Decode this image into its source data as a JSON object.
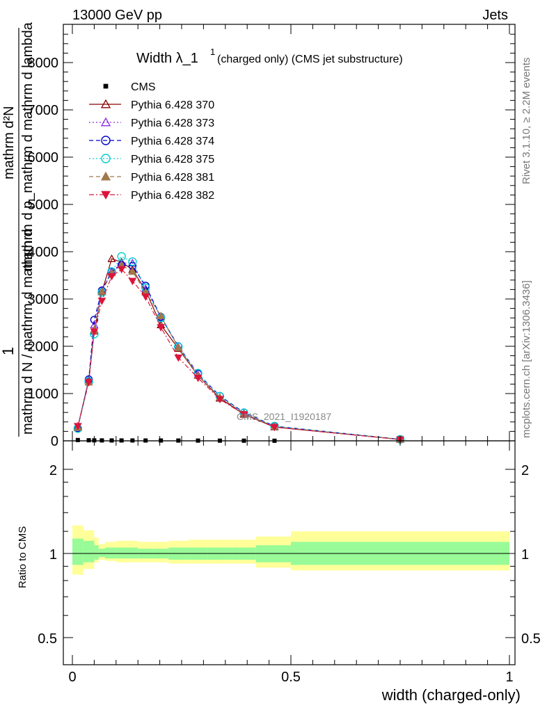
{
  "header": {
    "energy_label": "13000 GeV pp",
    "category_label": "Jets",
    "plot_title_main": "Width λ_1",
    "plot_title_sup": "1",
    "plot_title_rest": "(charged only) (CMS jet substructure)",
    "watermark": "CMS_2021_I1920187",
    "side_rivet": "Rivet 3.1.10, ≥ 2.2M events",
    "side_mcplots": "mcplots.cern.ch [arXiv:1306.3436]"
  },
  "ylabel_main": {
    "numerator": "mathrm d²N",
    "denominator": "mathrm d p_mathrm d mathrm d lambda",
    "prefix_num": "1",
    "prefix_den": "mathrm d N / mathrm d mathrm d"
  },
  "ratio_ylabel": "Ratio to CMS",
  "xlabel": "width (charged-only)",
  "chart_data": [
    {
      "type": "line",
      "panel": "main",
      "xlim": [
        -0.02,
        1.0
      ],
      "ylim": [
        0,
        8800
      ],
      "x_ticks": [
        "0",
        "0.5",
        "1"
      ],
      "y_ticks": [
        "0",
        "1000",
        "2000",
        "3000",
        "4000",
        "5000",
        "6000",
        "7000",
        "8000"
      ],
      "legend_placement": "top-left",
      "x": [
        0.0125,
        0.0375,
        0.05,
        0.0675,
        0.09,
        0.1125,
        0.1375,
        0.1675,
        0.2025,
        0.2425,
        0.2875,
        0.3375,
        0.3925,
        0.4625,
        0.75
      ],
      "series": [
        {
          "name": "CMS",
          "color": "#000000",
          "marker": "square",
          "values": [
            17,
            12,
            10,
            9,
            8,
            8,
            8,
            7,
            7,
            6,
            5,
            4,
            3,
            2,
            1
          ]
        },
        {
          "name": "Pythia 6.428 370",
          "color": "#8b0000",
          "marker": "triangle-up-open",
          "dash": "solid",
          "values": [
            300,
            1280,
            2320,
            3150,
            3850,
            3780,
            3620,
            3180,
            2450,
            1950,
            1380,
            900,
            560,
            290,
            30
          ]
        },
        {
          "name": "Pythia 6.428 373",
          "color": "#8a2be2",
          "marker": "triangle-up-open",
          "dash": "dotted",
          "values": [
            280,
            1300,
            2450,
            3180,
            3580,
            3760,
            3760,
            3220,
            2620,
            1980,
            1400,
            920,
            580,
            300,
            30
          ]
        },
        {
          "name": "Pythia 6.428 374",
          "color": "#0000cd",
          "marker": "circle-open",
          "dash": "dashed",
          "values": [
            270,
            1300,
            2560,
            3180,
            3580,
            3720,
            3700,
            3280,
            2620,
            2000,
            1420,
            950,
            600,
            310,
            32
          ]
        },
        {
          "name": "Pythia 6.428 375",
          "color": "#00ced1",
          "marker": "circle-open",
          "dash": "dotted",
          "values": [
            260,
            1260,
            2260,
            3140,
            3580,
            3900,
            3790,
            3240,
            2600,
            1990,
            1430,
            940,
            590,
            310,
            32
          ]
        },
        {
          "name": "Pythia 6.428 381",
          "color": "#a0784a",
          "marker": "triangle-up-filled",
          "dash": "dashed",
          "values": [
            280,
            1240,
            2350,
            3160,
            3550,
            3720,
            3580,
            3140,
            2640,
            1970,
            1380,
            920,
            580,
            300,
            30
          ]
        },
        {
          "name": "Pythia 6.428 382",
          "color": "#dc143c",
          "marker": "triangle-down-filled",
          "dash": "dashdot",
          "values": [
            310,
            1240,
            2310,
            2960,
            3480,
            3630,
            3380,
            3050,
            2400,
            1760,
            1330,
            880,
            560,
            290,
            28
          ]
        }
      ]
    },
    {
      "type": "area",
      "panel": "ratio",
      "xlim": [
        -0.02,
        1.0
      ],
      "ylim": [
        0.4,
        2.3
      ],
      "y_scale": "log",
      "x_ticks": [
        "0",
        "0.5",
        "1"
      ],
      "y_ticks": [
        "0.5",
        "1",
        "2"
      ],
      "reference_line": 1,
      "bins": [
        0.0,
        0.025,
        0.05,
        0.06,
        0.075,
        0.1,
        0.125,
        0.15,
        0.185,
        0.22,
        0.265,
        0.31,
        0.365,
        0.42,
        0.5,
        1.0
      ],
      "stat_band": [
        [
          0.91,
          1.13
        ],
        [
          0.93,
          1.11
        ],
        [
          0.95,
          1.07
        ],
        [
          0.97,
          1.04
        ],
        [
          0.96,
          1.05
        ],
        [
          0.96,
          1.05
        ],
        [
          0.96,
          1.05
        ],
        [
          0.96,
          1.04
        ],
        [
          0.96,
          1.04
        ],
        [
          0.95,
          1.05
        ],
        [
          0.95,
          1.05
        ],
        [
          0.95,
          1.05
        ],
        [
          0.95,
          1.05
        ],
        [
          0.93,
          1.07
        ],
        [
          0.91,
          1.1
        ]
      ],
      "total_band": [
        [
          0.84,
          1.26
        ],
        [
          0.88,
          1.21
        ],
        [
          0.93,
          1.14
        ],
        [
          0.95,
          1.08
        ],
        [
          0.94,
          1.1
        ],
        [
          0.93,
          1.11
        ],
        [
          0.93,
          1.11
        ],
        [
          0.93,
          1.1
        ],
        [
          0.93,
          1.1
        ],
        [
          0.92,
          1.11
        ],
        [
          0.92,
          1.12
        ],
        [
          0.92,
          1.12
        ],
        [
          0.92,
          1.12
        ],
        [
          0.89,
          1.15
        ],
        [
          0.87,
          1.2
        ]
      ],
      "stat_color": "#98fb98",
      "total_color": "#ffff99"
    }
  ]
}
